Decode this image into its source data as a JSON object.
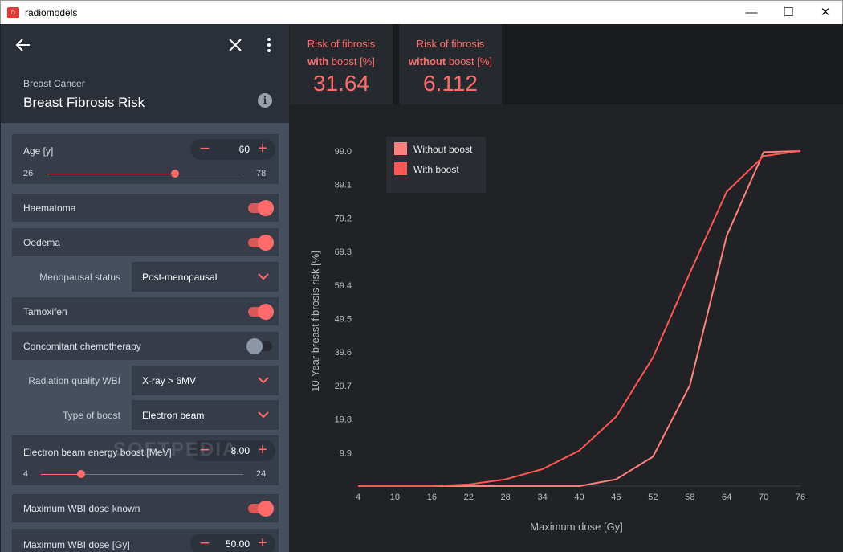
{
  "window": {
    "title": "radiomodels",
    "minimize": "—",
    "maximize": "☐",
    "close": "✕"
  },
  "header": {
    "category": "Breast Cancer",
    "title": "Breast Fibrosis Risk",
    "info": "i"
  },
  "inputs": {
    "age": {
      "label": "Age [y]",
      "value": "60",
      "min": "26",
      "max": "78",
      "fraction": 0.65
    },
    "haematoma": {
      "label": "Haematoma",
      "on": true
    },
    "oedema": {
      "label": "Oedema",
      "on": true
    },
    "menopausal": {
      "label": "Menopausal status",
      "value": "Post-menopausal"
    },
    "tamoxifen": {
      "label": "Tamoxifen",
      "on": true
    },
    "chemo": {
      "label": "Concomitant chemotherapy",
      "on": false
    },
    "radiation_quality": {
      "label": "Radiation quality WBI",
      "value": "X-ray > 6MV"
    },
    "boost_type": {
      "label": "Type of boost",
      "value": "Electron beam"
    },
    "boost_energy": {
      "label": "Electron beam energy boost [MeV]",
      "value": "8.00",
      "min": "4",
      "max": "24",
      "fraction": 0.2
    },
    "wbi_known": {
      "label": "Maximum WBI dose known",
      "on": true
    },
    "wbi_dose": {
      "label": "Maximum WBI dose [Gy]",
      "value": "50.00"
    }
  },
  "results": {
    "with_boost": {
      "line1": "Risk of fibrosis",
      "bold": "with",
      "rest": " boost [%]",
      "value": "31.64"
    },
    "without_boost": {
      "line1": "Risk of fibrosis",
      "bold": "without",
      "rest": " boost [%]",
      "value": "6.112"
    }
  },
  "watermark": "SOFTPEDIA",
  "colors": {
    "accent": "#ff6b6b",
    "without_boost": "#ff8080",
    "with_boost": "#ff5555"
  },
  "chart_data": {
    "type": "line",
    "title": "",
    "xlabel": "Maximum dose [Gy]",
    "ylabel": "10-Year breast fibrosis risk [%]",
    "x": [
      4,
      10,
      16,
      22,
      28,
      34,
      40,
      46,
      52,
      58,
      64,
      70,
      76
    ],
    "x_ticks": [
      "4",
      "10",
      "16",
      "22",
      "28",
      "34",
      "40",
      "46",
      "52",
      "58",
      "64",
      "70",
      "76"
    ],
    "y_ticks": [
      "9.9",
      "19.8",
      "29.7",
      "39.6",
      "49.5",
      "59.4",
      "69.3",
      "79.2",
      "89.1",
      "99.0"
    ],
    "ylim": [
      0,
      99
    ],
    "xlim": [
      4,
      76
    ],
    "legend": "top-left",
    "grid": false,
    "series": [
      {
        "name": "Without boost",
        "values": [
          0,
          0,
          0,
          0,
          0,
          0,
          0,
          2,
          8.7,
          29.8,
          74,
          98.7,
          99
        ]
      },
      {
        "name": "With boost",
        "values": [
          0,
          0,
          0,
          0.5,
          2,
          5,
          10.5,
          20.5,
          38,
          63,
          87,
          97.5,
          99
        ]
      }
    ]
  }
}
